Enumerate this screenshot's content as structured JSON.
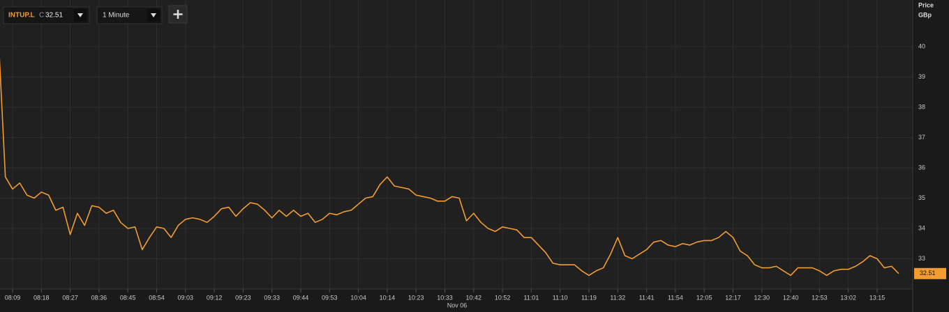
{
  "chart_data": {
    "type": "line",
    "close_label": "C",
    "interval": "1 Minute",
    "ylabel": "Price",
    "yunit": "GBp",
    "date_label": "Nov 06",
    "categories": [
      null,
      null,
      "08:09",
      null,
      null,
      null,
      "08:18",
      null,
      null,
      null,
      "08:27",
      null,
      null,
      null,
      "08:36",
      null,
      null,
      null,
      "08:45",
      null,
      null,
      null,
      "08:54",
      null,
      null,
      null,
      "09:03",
      null,
      null,
      null,
      "09:12",
      null,
      null,
      null,
      "09:23",
      null,
      null,
      null,
      "09:33",
      null,
      null,
      null,
      "09:44",
      null,
      null,
      null,
      "09:53",
      null,
      null,
      null,
      "10:04",
      null,
      null,
      null,
      "10:14",
      null,
      null,
      null,
      "10:23",
      null,
      null,
      null,
      "10:33",
      null,
      null,
      null,
      "10:42",
      null,
      null,
      null,
      "10:52",
      null,
      null,
      null,
      "11:01",
      null,
      null,
      null,
      "11:10",
      null,
      null,
      null,
      "11:19",
      null,
      null,
      null,
      "11:32",
      null,
      null,
      null,
      "11:41",
      null,
      null,
      null,
      "11:54",
      null,
      null,
      null,
      "12:05",
      null,
      null,
      null,
      "12:17",
      null,
      null,
      null,
      "12:30",
      null,
      null,
      null,
      "12:40",
      null,
      null,
      null,
      "12:53",
      null,
      null,
      null,
      "13:02",
      null,
      null,
      null,
      "13:15",
      null,
      null,
      null
    ],
    "series": [
      {
        "name": "INTUP.L",
        "color": "#f39c32",
        "values": [
          40.5,
          35.7,
          35.3,
          35.5,
          35.1,
          35.0,
          35.2,
          35.1,
          34.6,
          34.7,
          33.8,
          34.5,
          34.1,
          34.75,
          34.7,
          34.5,
          34.6,
          34.2,
          34.0,
          34.05,
          33.3,
          33.7,
          34.05,
          34.0,
          33.7,
          34.1,
          34.3,
          34.35,
          34.3,
          34.2,
          34.4,
          34.65,
          34.7,
          34.4,
          34.65,
          34.85,
          34.8,
          34.6,
          34.35,
          34.6,
          34.4,
          34.6,
          34.4,
          34.5,
          34.2,
          34.3,
          34.5,
          34.45,
          34.55,
          34.6,
          34.8,
          35.0,
          35.05,
          35.45,
          35.7,
          35.4,
          35.35,
          35.3,
          35.1,
          35.05,
          35.0,
          34.9,
          34.9,
          35.05,
          35.0,
          34.25,
          34.5,
          34.2,
          34.0,
          33.9,
          34.05,
          34.0,
          33.95,
          33.7,
          33.7,
          33.45,
          33.2,
          32.85,
          32.8,
          32.8,
          32.8,
          32.6,
          32.45,
          32.6,
          32.7,
          33.15,
          33.7,
          33.1,
          33.0,
          33.15,
          33.3,
          33.55,
          33.6,
          33.45,
          33.4,
          33.5,
          33.45,
          33.55,
          33.6,
          33.6,
          33.7,
          33.9,
          33.7,
          33.25,
          33.1,
          32.8,
          32.7,
          32.7,
          32.75,
          32.6,
          32.45,
          32.7,
          32.7,
          32.7,
          32.6,
          32.45,
          32.6,
          32.65,
          32.65,
          32.75,
          32.9,
          33.1,
          33.0,
          32.7,
          32.75,
          32.51
        ]
      }
    ],
    "ylim": [
      32.0,
      41.54
    ],
    "yticks": [
      33,
      34,
      35,
      36,
      37,
      38,
      39,
      40
    ],
    "grid": true
  }
}
